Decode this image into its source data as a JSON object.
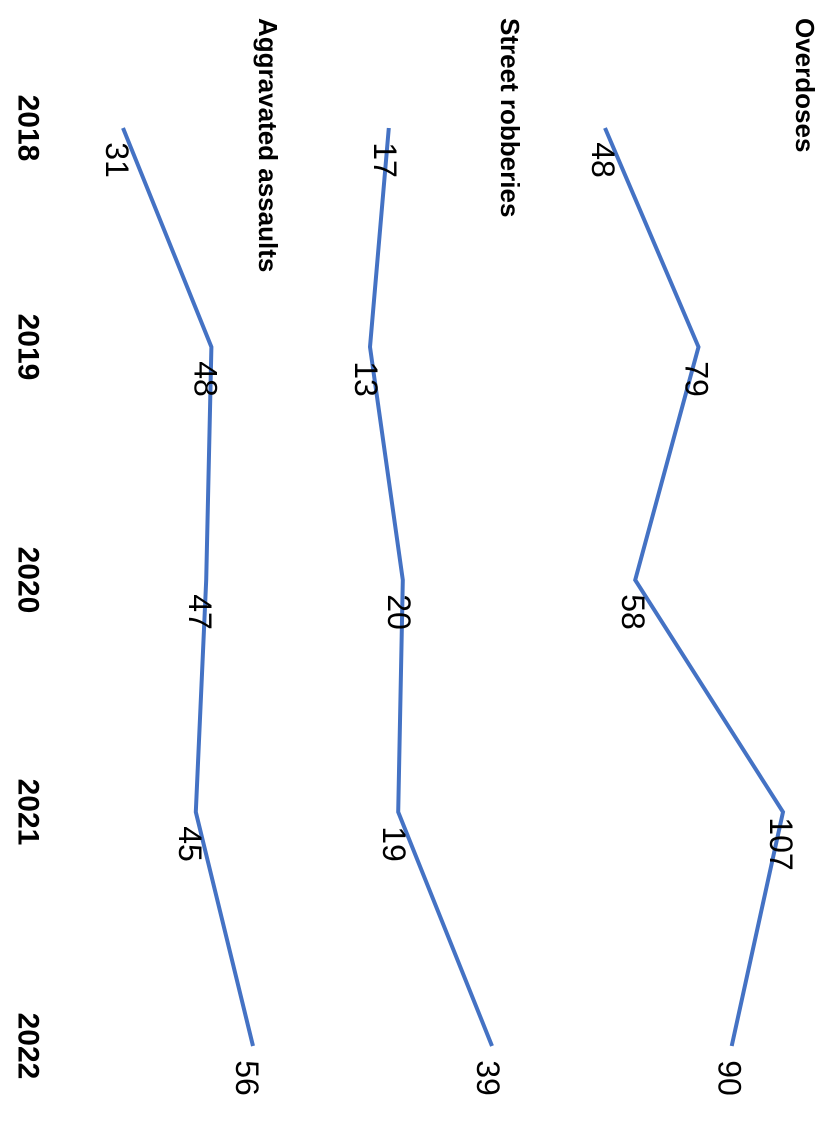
{
  "chart_data": {
    "type": "line",
    "categories": [
      "2018",
      "2019",
      "2020",
      "2021",
      "2022"
    ],
    "series": [
      {
        "name": "Overdoses",
        "values": [
          48,
          79,
          58,
          107,
          90
        ]
      },
      {
        "name": "Street robberies",
        "values": [
          17,
          13,
          20,
          19,
          39
        ]
      },
      {
        "name": "Aggravated assaults",
        "values": [
          31,
          48,
          47,
          45,
          56
        ]
      }
    ],
    "line_color": "#4472C4",
    "grid": false,
    "legend": "none",
    "orientation": "rotated 90 degrees clockwise"
  }
}
